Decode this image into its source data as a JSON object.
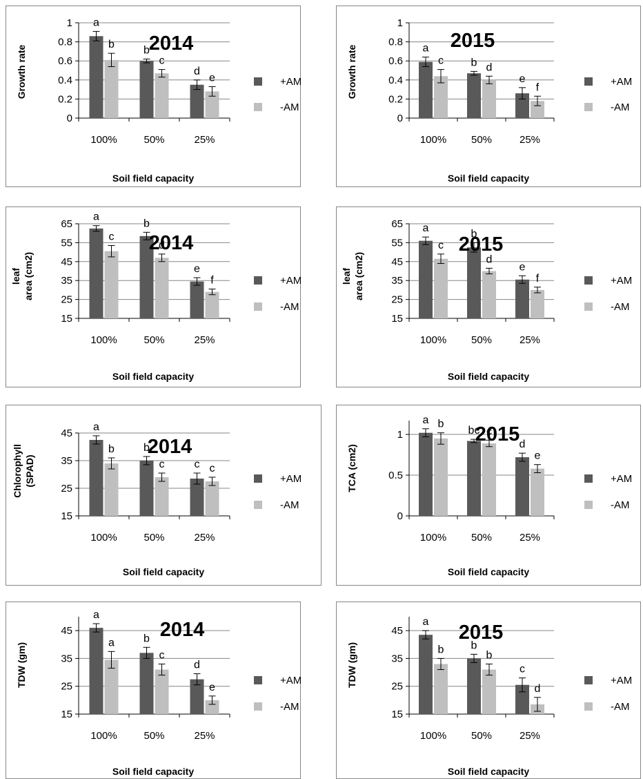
{
  "legend": {
    "series": [
      "+AM",
      "-AM"
    ]
  },
  "colors": {
    "plus_am": "#595959",
    "minus_am": "#bfbfbf",
    "grid": "#868686",
    "frame": "#868686"
  },
  "chart_data": [
    {
      "type": "bar",
      "year": "2014",
      "ylabel": "Growth rate",
      "xlabel": "Soil field capacity",
      "categories": [
        "100%",
        "50%",
        "25%"
      ],
      "ylim": [
        0,
        1
      ],
      "yticks": [
        "0",
        "0.2",
        "0.4",
        "0.6",
        "0.8",
        "1"
      ],
      "series": [
        {
          "name": "+AM",
          "values": [
            0.86,
            0.6,
            0.35
          ],
          "errors": [
            0.05,
            0.02,
            0.05
          ],
          "letters": [
            "a",
            "b",
            "d"
          ]
        },
        {
          "name": "-AM",
          "values": [
            0.61,
            0.47,
            0.28
          ],
          "errors": [
            0.07,
            0.04,
            0.05
          ],
          "letters": [
            "b",
            "c",
            "e"
          ]
        }
      ],
      "legend": "right",
      "grid": true
    },
    {
      "type": "bar",
      "year": "2015",
      "ylabel": "Growth rate",
      "xlabel": "Soil field capacity",
      "categories": [
        "100%",
        "50%",
        "25%"
      ],
      "ylim": [
        0,
        1
      ],
      "yticks": [
        "0",
        "0.2",
        "0.4",
        "0.6",
        "0.8",
        "1"
      ],
      "series": [
        {
          "name": "+AM",
          "values": [
            0.59,
            0.47,
            0.26
          ],
          "errors": [
            0.05,
            0.02,
            0.06
          ],
          "letters": [
            "a",
            "b",
            "e"
          ]
        },
        {
          "name": "-AM",
          "values": [
            0.44,
            0.4,
            0.18
          ],
          "errors": [
            0.07,
            0.04,
            0.05
          ],
          "letters": [
            "c",
            "d",
            "f"
          ]
        }
      ],
      "legend": "right",
      "grid": true
    },
    {
      "type": "bar",
      "year": "2014",
      "ylabel": "leaf area (cm2)",
      "xlabel": "Soil field capacity",
      "categories": [
        "100%",
        "50%",
        "25%"
      ],
      "ylim": [
        15,
        65
      ],
      "yticks": [
        "15",
        "25",
        "35",
        "45",
        "55",
        "65"
      ],
      "series": [
        {
          "name": "+AM",
          "values": [
            62.5,
            58.5,
            34.5
          ],
          "errors": [
            1.5,
            2.0,
            2.0
          ],
          "letters": [
            "a",
            "b",
            "e"
          ]
        },
        {
          "name": "-AM",
          "values": [
            50.5,
            47.0,
            29.0
          ],
          "errors": [
            3.0,
            2.0,
            1.5
          ],
          "letters": [
            "c",
            "d",
            "f"
          ]
        }
      ],
      "legend": "right",
      "grid": true
    },
    {
      "type": "bar",
      "year": "2015",
      "ylabel": "leaf area (cm2)",
      "xlabel": "Soil field capacity",
      "categories": [
        "100%",
        "50%",
        "25%"
      ],
      "ylim": [
        15,
        65
      ],
      "yticks": [
        "15",
        "25",
        "35",
        "45",
        "55",
        "65"
      ],
      "series": [
        {
          "name": "+AM",
          "values": [
            56.0,
            52.5,
            35.5
          ],
          "errors": [
            2.0,
            2.5,
            2.0
          ],
          "letters": [
            "a",
            "b",
            "e"
          ]
        },
        {
          "name": "-AM",
          "values": [
            46.5,
            40.0,
            30.0
          ],
          "errors": [
            2.5,
            1.5,
            1.5
          ],
          "letters": [
            "c",
            "d",
            "f"
          ]
        }
      ],
      "legend": "right",
      "grid": true
    },
    {
      "type": "bar",
      "year": "2014",
      "ylabel": "Chlorophyll (SPAD)",
      "xlabel": "Soil field capacity",
      "categories": [
        "100%",
        "50%",
        "25%"
      ],
      "ylim": [
        15,
        45
      ],
      "yticks": [
        "15",
        "25",
        "35",
        "45"
      ],
      "series": [
        {
          "name": "+AM",
          "values": [
            42.5,
            35.0,
            28.5
          ],
          "errors": [
            1.5,
            1.5,
            2.0
          ],
          "letters": [
            "a",
            "b",
            "c"
          ]
        },
        {
          "name": "-AM",
          "values": [
            34.0,
            29.0,
            27.5
          ],
          "errors": [
            2.0,
            1.5,
            1.5
          ],
          "letters": [
            "b",
            "c",
            "c"
          ]
        }
      ],
      "legend": "right",
      "grid": true
    },
    {
      "type": "bar",
      "year": "2015",
      "ylabel": "TCA (cm2)",
      "xlabel": "Soil field capacity",
      "categories": [
        "100%",
        "50%",
        "25%"
      ],
      "ylim": [
        0,
        1.17
      ],
      "yticks": [
        "0",
        "0.5",
        "1"
      ],
      "series": [
        {
          "name": "+AM",
          "values": [
            1.02,
            0.92,
            0.72
          ],
          "errors": [
            0.05,
            0.02,
            0.05
          ],
          "letters": [
            "a",
            "bc",
            "d"
          ]
        },
        {
          "name": "-AM",
          "values": [
            0.95,
            0.89,
            0.58
          ],
          "errors": [
            0.07,
            0.04,
            0.05
          ],
          "letters": [
            "b",
            "c",
            "e"
          ]
        }
      ],
      "legend": "right",
      "grid": true
    },
    {
      "type": "bar",
      "year": "2014",
      "ylabel": "TDW (gm)",
      "xlabel": "Soil field capacity",
      "categories": [
        "100%",
        "50%",
        "25%"
      ],
      "ylim": [
        15,
        50
      ],
      "yticks": [
        "15",
        "25",
        "35",
        "45"
      ],
      "series": [
        {
          "name": "+AM",
          "values": [
            46.0,
            37.0,
            27.5
          ],
          "errors": [
            1.5,
            2.0,
            2.0
          ],
          "letters": [
            "a",
            "b",
            "d"
          ]
        },
        {
          "name": "-AM",
          "values": [
            34.5,
            31.0,
            20.0
          ],
          "errors": [
            3.0,
            2.0,
            1.5
          ],
          "letters": [
            "a",
            "c",
            "e"
          ]
        }
      ],
      "legend": "right",
      "grid": true
    },
    {
      "type": "bar",
      "year": "2015",
      "ylabel": "TDW (gm)",
      "xlabel": "Soil field capacity",
      "categories": [
        "100%",
        "50%",
        "25%"
      ],
      "ylim": [
        15,
        50
      ],
      "yticks": [
        "15",
        "25",
        "35",
        "45"
      ],
      "series": [
        {
          "name": "+AM",
          "values": [
            43.5,
            35.0,
            25.5
          ],
          "errors": [
            1.5,
            1.5,
            2.5
          ],
          "letters": [
            "a",
            "b",
            "c"
          ]
        },
        {
          "name": "-AM",
          "values": [
            33.0,
            31.0,
            18.5
          ],
          "errors": [
            2.0,
            2.0,
            2.5
          ],
          "letters": [
            "b",
            "b",
            "d"
          ]
        }
      ],
      "legend": "right",
      "grid": true
    }
  ]
}
